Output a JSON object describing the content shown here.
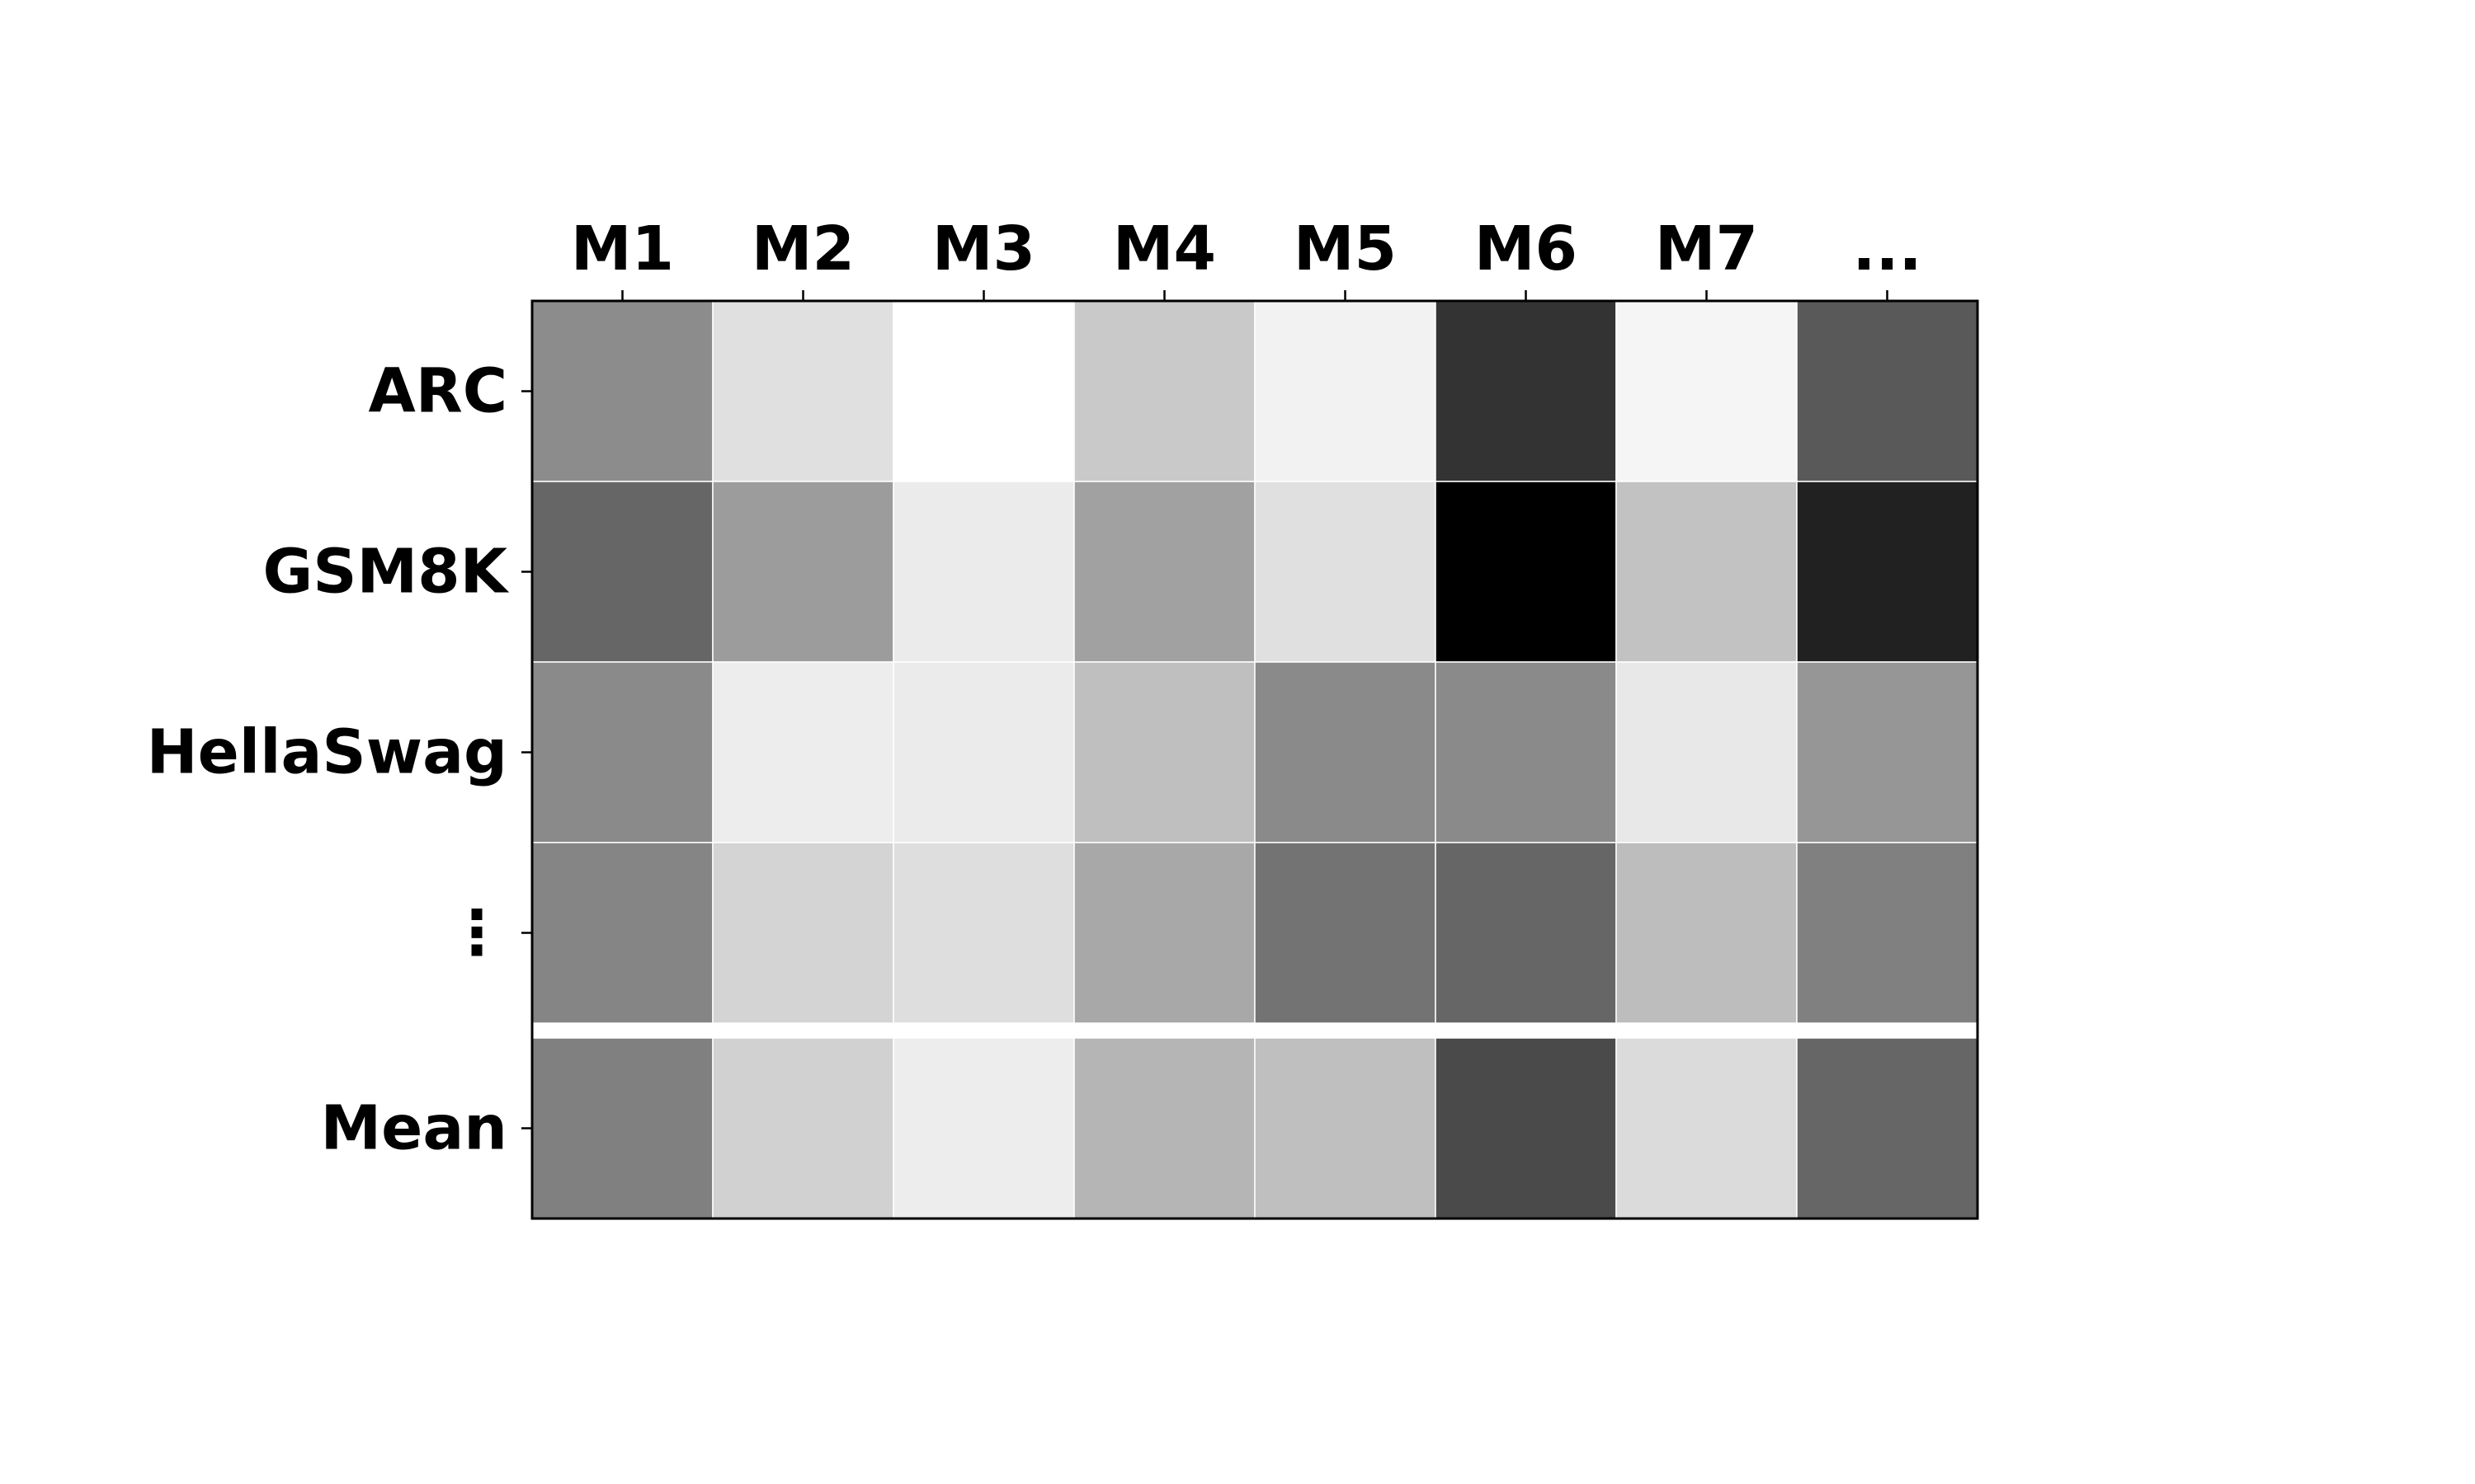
{
  "chart_data": {
    "type": "heatmap",
    "colormap": "gray",
    "grid": false,
    "legend": "none",
    "x_tick_labels": [
      "M1",
      "M2",
      "M3",
      "M4",
      "M5",
      "M6",
      "M7",
      "..."
    ],
    "y_tick_labels": [
      "ARC",
      "GSM8K",
      "HellaSwag",
      "⋮",
      "Mean"
    ],
    "separator_before_row": 4,
    "values": [
      [
        0.55,
        0.88,
        1.0,
        0.79,
        0.95,
        0.2,
        0.96,
        0.35
      ],
      [
        0.4,
        0.61,
        0.92,
        0.63,
        0.88,
        0.0,
        0.76,
        0.13
      ],
      [
        0.54,
        0.93,
        0.92,
        0.75,
        0.54,
        0.54,
        0.91,
        0.59
      ],
      [
        0.52,
        0.83,
        0.87,
        0.66,
        0.45,
        0.4,
        0.74,
        0.5
      ],
      [
        0.5,
        0.82,
        0.93,
        0.71,
        0.75,
        0.29,
        0.86,
        0.4
      ]
    ]
  }
}
